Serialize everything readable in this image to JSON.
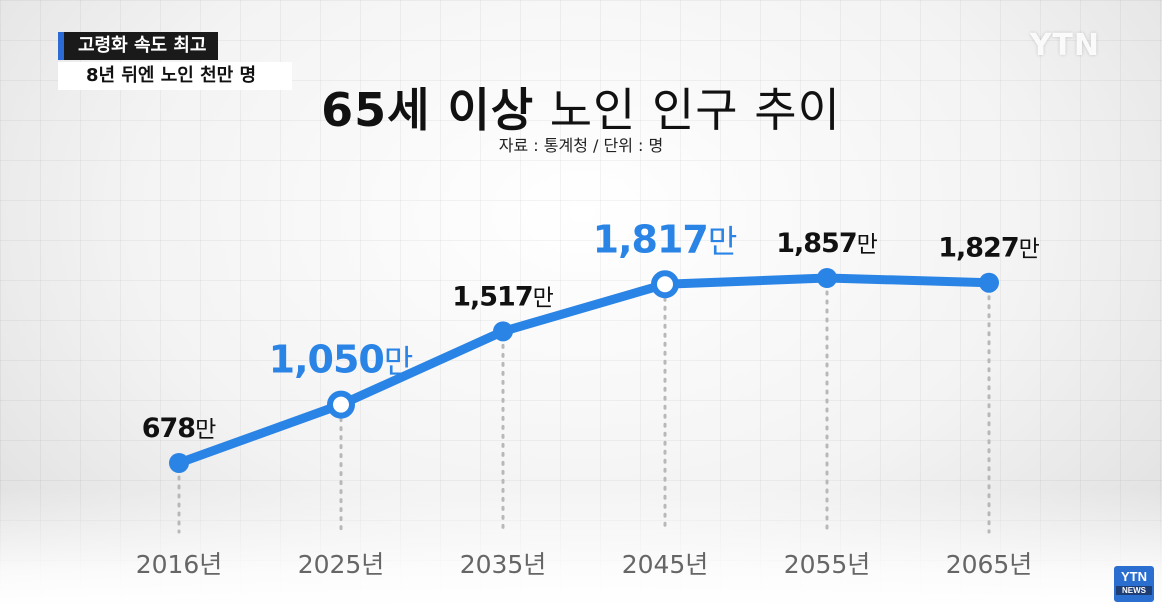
{
  "caption": {
    "line1": "고령화 속도 최고",
    "line2": "8년 뒤엔 노인 천만 명"
  },
  "logo": "YTN",
  "badge": {
    "top": "YTN",
    "bottom": "NEWS"
  },
  "header": {
    "title_bold": "65세 이상",
    "title_normal": "노인 인구 추이",
    "subtitle": "자료 : 통계청 / 단위 : 명"
  },
  "colors": {
    "line": "#2a84e6",
    "highlight_label": "#2a84e6",
    "label": "#111111",
    "axis_label": "#666666"
  },
  "chart_data": {
    "type": "line",
    "title": "65세 이상 노인 인구 추이",
    "subtitle": "자료 : 통계청 / 단위 : 명",
    "categories": [
      "2016년",
      "2025년",
      "2035년",
      "2045년",
      "2055년",
      "2065년"
    ],
    "values": [
      678,
      1050,
      1517,
      1817,
      1857,
      1827
    ],
    "unit_suffix": "만",
    "value_labels": [
      "678",
      "1,050",
      "1,517",
      "1,817",
      "1,857",
      "1,827"
    ],
    "highlighted": [
      false,
      true,
      false,
      true,
      false,
      false
    ],
    "ylim": [
      678,
      1857
    ],
    "grid": false,
    "legend": "none"
  }
}
